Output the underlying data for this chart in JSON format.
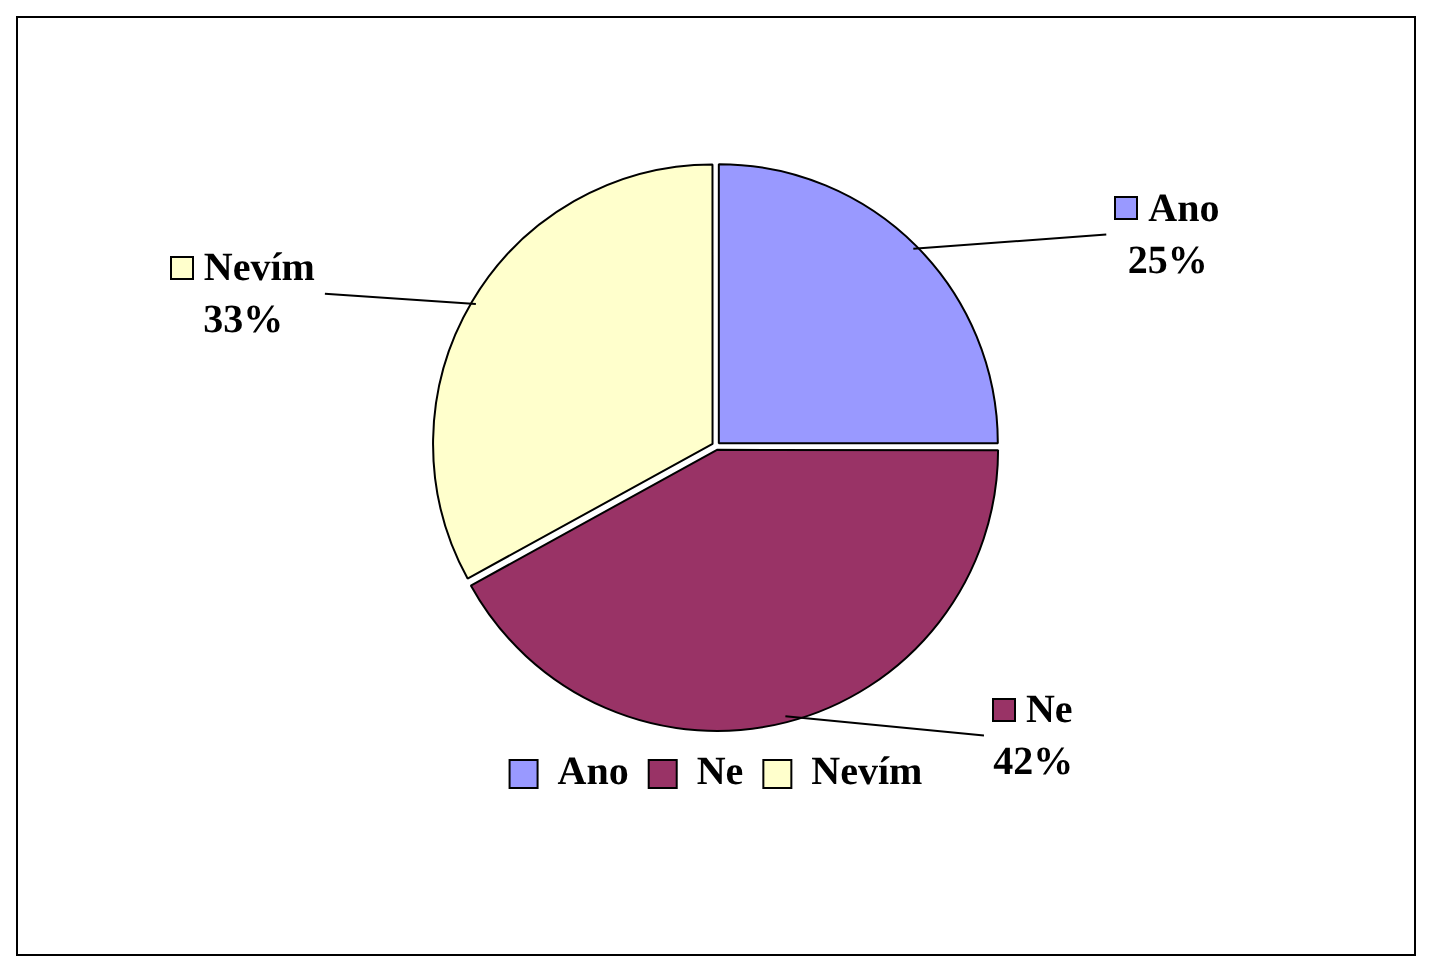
{
  "chart_data": {
    "type": "pie",
    "categories": [
      "Ano",
      "Ne",
      "Nevím"
    ],
    "values": [
      25,
      42,
      33
    ],
    "colors": [
      "#9999ff",
      "#993366",
      "#ffffcc"
    ],
    "value_labels": [
      "25%",
      "42%",
      "33%"
    ],
    "legend": "bottom"
  }
}
